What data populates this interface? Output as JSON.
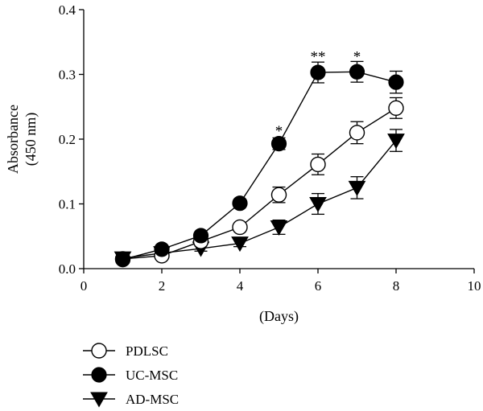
{
  "chart_data": {
    "type": "line",
    "title": "",
    "xlabel": "(Days)",
    "ylabel": [
      "Absorbance",
      "(450 nm)"
    ],
    "xlim": [
      0,
      10
    ],
    "ylim": [
      0,
      0.4
    ],
    "xticks": [
      "0",
      "2",
      "4",
      "6",
      "8",
      "10"
    ],
    "yticks": [
      "0.0",
      "0.1",
      "0.2",
      "0.3",
      "0.4"
    ],
    "grid": false,
    "legend_position": "bottom-left",
    "series": [
      {
        "name": "PDLSC",
        "marker": "open-circle",
        "color": "#000000",
        "x": [
          1,
          2,
          3,
          4,
          5,
          6,
          7,
          8
        ],
        "y": [
          0.015,
          0.02,
          0.042,
          0.064,
          0.114,
          0.161,
          0.21,
          0.248
        ],
        "err": [
          0.005,
          0.006,
          0.006,
          0.006,
          0.012,
          0.016,
          0.017,
          0.016
        ]
      },
      {
        "name": "UC-MSC",
        "marker": "filled-circle",
        "color": "#000000",
        "x": [
          1,
          2,
          3,
          4,
          5,
          6,
          7,
          8
        ],
        "y": [
          0.014,
          0.03,
          0.051,
          0.101,
          0.193,
          0.303,
          0.304,
          0.288
        ],
        "err": [
          0.004,
          0.005,
          0.005,
          0.006,
          0.009,
          0.016,
          0.016,
          0.017
        ]
      },
      {
        "name": "AD-MSC",
        "marker": "filled-triangle-down",
        "color": "#000000",
        "x": [
          1,
          2,
          3,
          4,
          5,
          6,
          7,
          8
        ],
        "y": [
          0.016,
          0.024,
          0.031,
          0.039,
          0.064,
          0.1,
          0.125,
          0.198
        ],
        "err": [
          0.004,
          0.004,
          0.004,
          0.005,
          0.011,
          0.016,
          0.017,
          0.017
        ]
      }
    ],
    "annotations": [
      {
        "x": 5,
        "y": 0.215,
        "text": "*"
      },
      {
        "x": 6,
        "y": 0.33,
        "text": "**"
      },
      {
        "x": 7,
        "y": 0.33,
        "text": "*"
      }
    ]
  }
}
